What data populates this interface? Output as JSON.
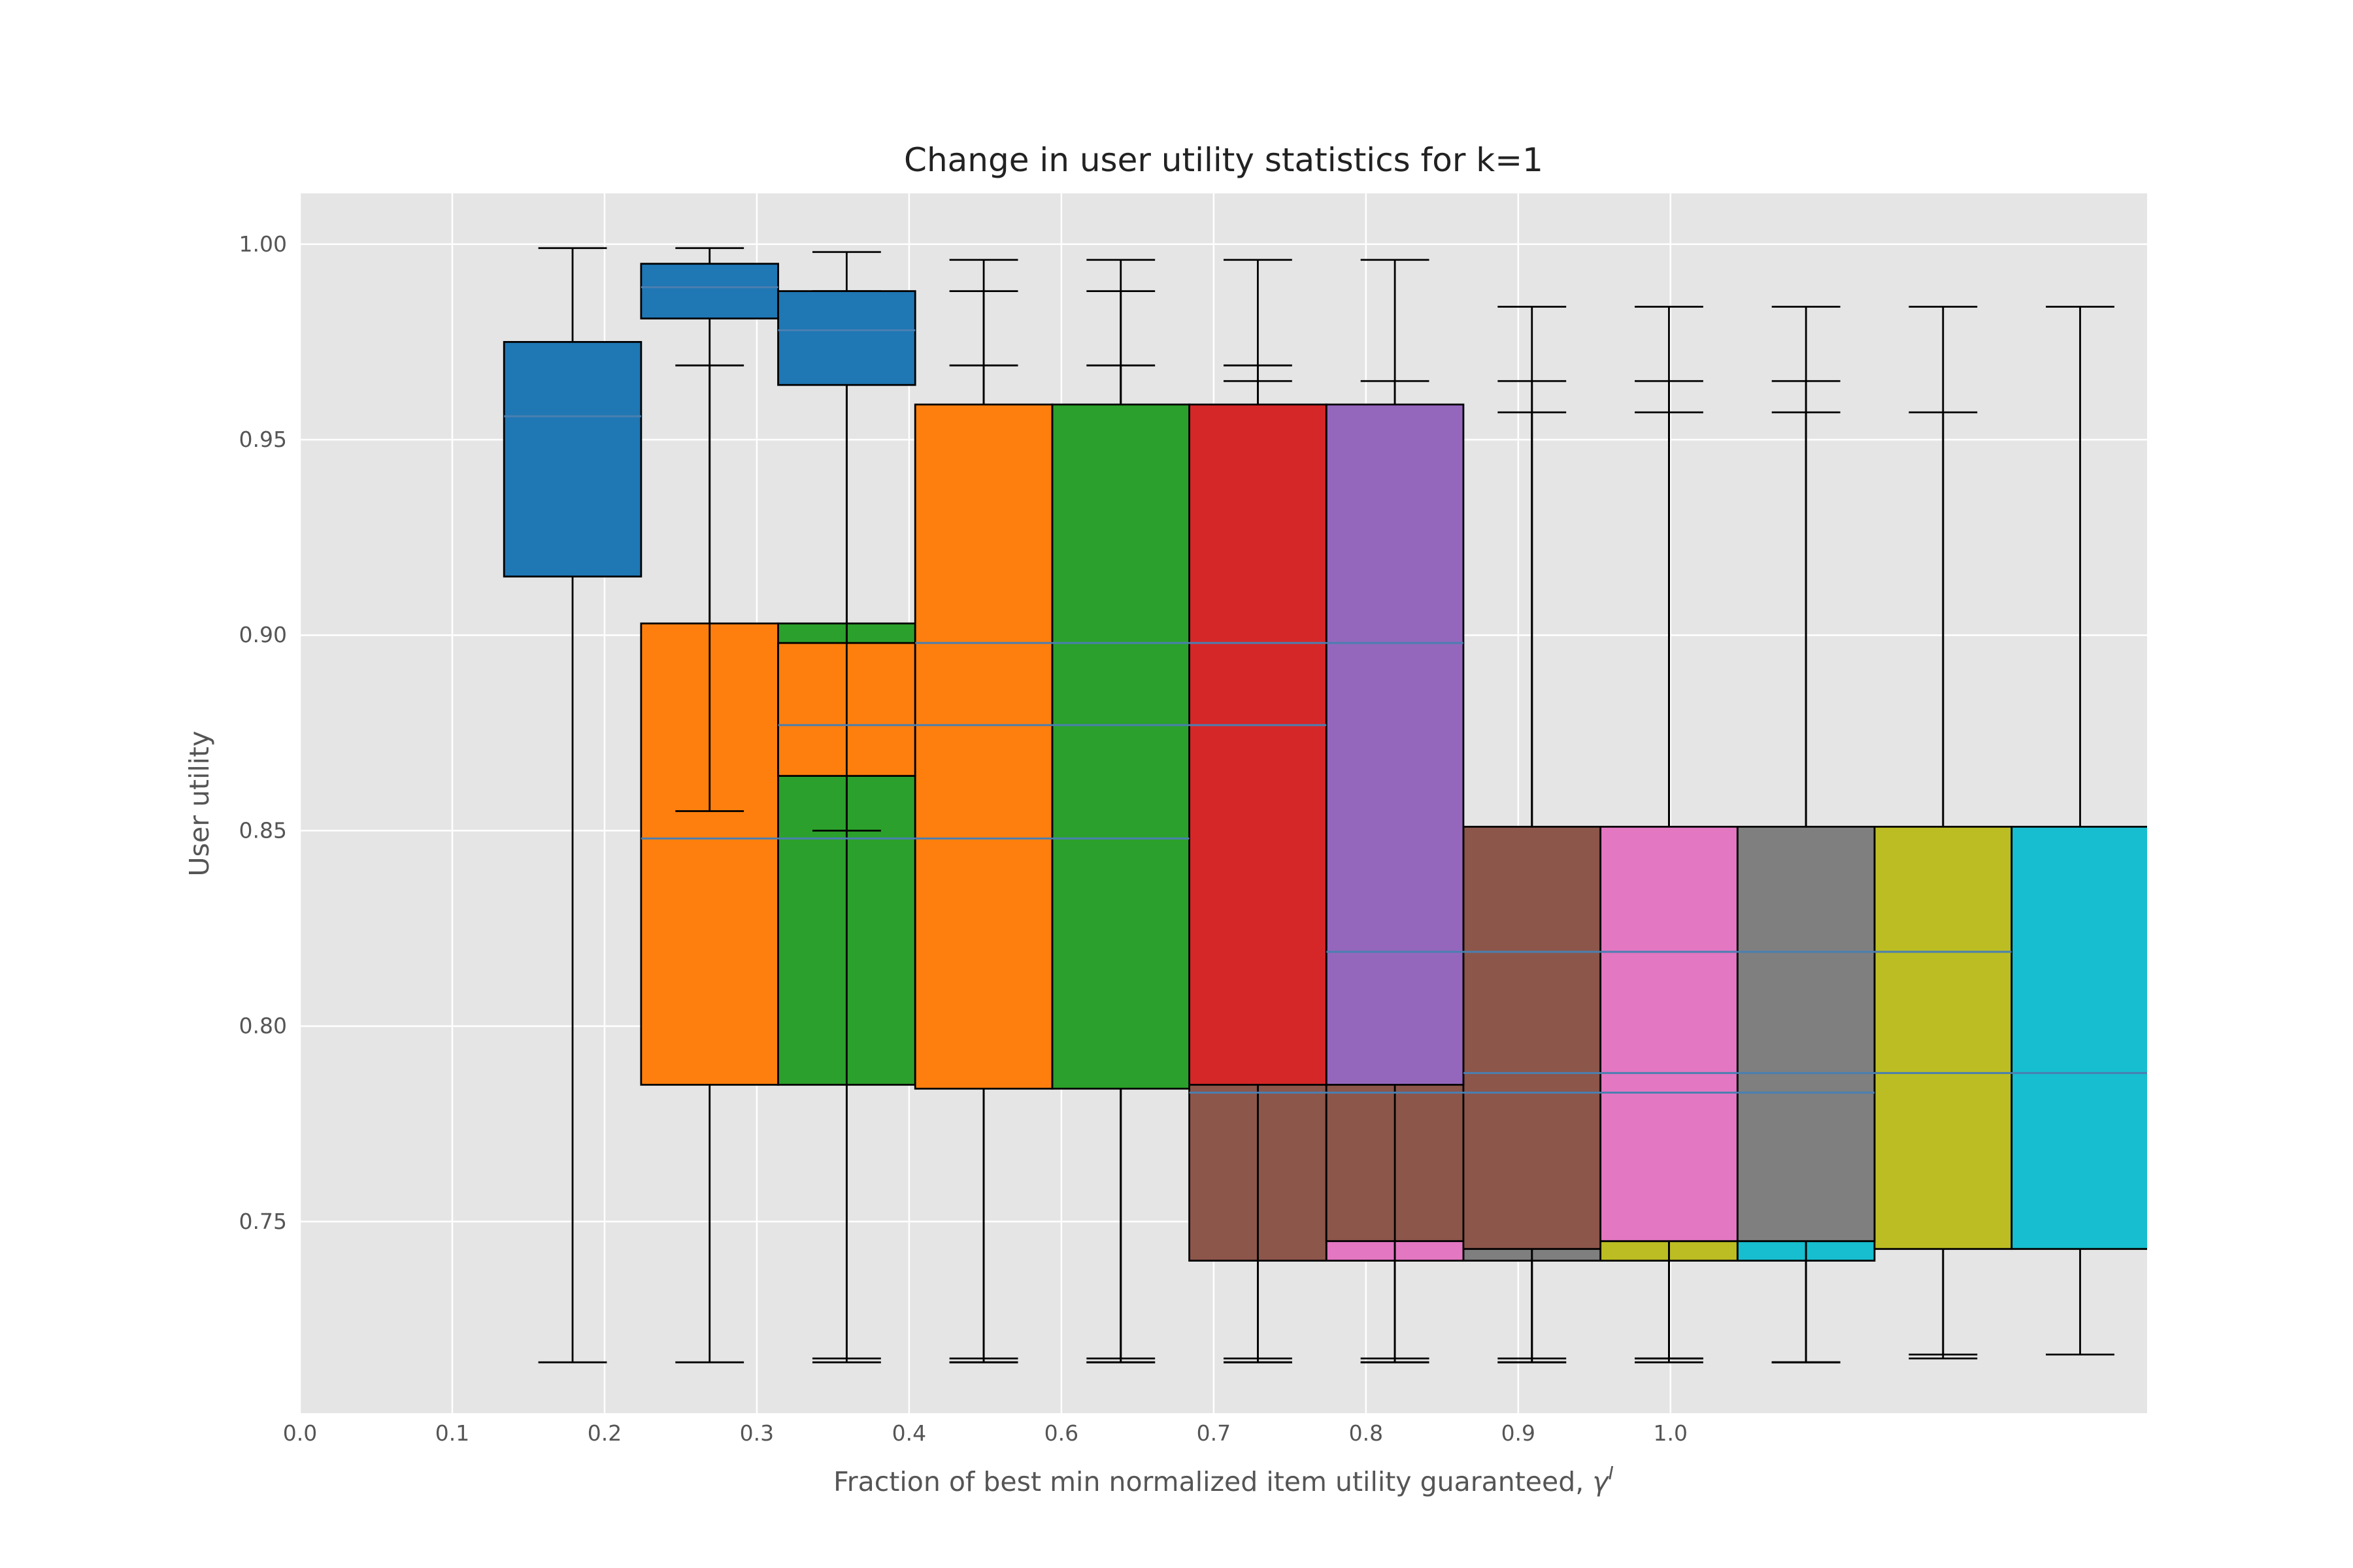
{
  "chart_data": {
    "type": "box",
    "title": "Change in user utility statistics for k=1",
    "x_label": {
      "text": "Fraction of best min normalized item utility guaranteed, ",
      "symbol": "γ",
      "superscript": "I"
    },
    "y_label": "User utility",
    "xlim": [
      0,
      12.13
    ],
    "ylim": [
      0.701,
      1.013
    ],
    "xticks": [
      {
        "value": 0,
        "label": "0.0"
      },
      {
        "value": 1,
        "label": "0.1"
      },
      {
        "value": 2,
        "label": "0.2"
      },
      {
        "value": 3,
        "label": "0.3"
      },
      {
        "value": 4,
        "label": "0.4"
      },
      {
        "value": 5,
        "label": "0.6"
      },
      {
        "value": 6,
        "label": "0.7"
      },
      {
        "value": 7,
        "label": "0.8"
      },
      {
        "value": 8,
        "label": "0.9"
      },
      {
        "value": 9,
        "label": "1.0"
      }
    ],
    "yticks": [
      0.75,
      {
        "value": 0.8,
        "label": "0.80"
      },
      0.85,
      {
        "value": 0.9,
        "label": "0.90"
      },
      0.95,
      {
        "value": 1.0,
        "label": "1.00"
      }
    ],
    "grid": true,
    "median_color": "#4a7fb0",
    "series": [
      {
        "color": "#1f77b4",
        "boxes": [
          {
            "position": 1.79,
            "whislo": 0.714,
            "q1": 0.915,
            "med": 0.956,
            "q3": 0.975,
            "whishi": 0.999
          },
          {
            "position": 2.69,
            "whislo": 0.855,
            "q1": 0.981,
            "med": 0.989,
            "q3": 0.995,
            "whishi": 0.999
          },
          {
            "position": 3.59,
            "whislo": 0.85,
            "q1": 0.964,
            "med": 0.978,
            "q3": 0.988,
            "whishi": 0.998
          }
        ]
      },
      {
        "color": "#ff7f0e",
        "boxes": [
          {
            "position": 2.69,
            "whislo": 0.714,
            "q1": 0.785,
            "med": 0.848,
            "q3": 0.903,
            "whishi": 0.969
          },
          {
            "position": 3.59,
            "whislo": 0.715,
            "q1": 0.864,
            "med": 0.877,
            "q3": 0.898,
            "whishi": 0.988
          },
          {
            "position": 4.49,
            "whislo": 0.714,
            "q1": 0.784,
            "med": 0.898,
            "q3": 0.959,
            "whishi": 0.996
          }
        ]
      },
      {
        "color": "#2ca02c",
        "boxes": [
          {
            "position": 3.59,
            "whislo": 0.714,
            "q1": 0.785,
            "med": 0.848,
            "q3": 0.903,
            "whishi": 0.969
          },
          {
            "position": 4.49,
            "whislo": 0.715,
            "q1": 0.864,
            "med": 0.877,
            "q3": 0.898,
            "whishi": 0.988
          },
          {
            "position": 5.39,
            "whislo": 0.714,
            "q1": 0.784,
            "med": 0.898,
            "q3": 0.959,
            "whishi": 0.996
          }
        ]
      },
      {
        "color": "#d62728",
        "boxes": [
          {
            "position": 4.49,
            "whislo": 0.714,
            "q1": 0.785,
            "med": 0.848,
            "q3": 0.903,
            "whishi": 0.969
          },
          {
            "position": 5.39,
            "whislo": 0.715,
            "q1": 0.864,
            "med": 0.877,
            "q3": 0.898,
            "whishi": 0.988
          },
          {
            "position": 6.29,
            "whislo": 0.714,
            "q1": 0.785,
            "med": 0.898,
            "q3": 0.959,
            "whishi": 0.996
          }
        ]
      },
      {
        "color": "#9467bd",
        "boxes": [
          {
            "position": 5.39,
            "whislo": 0.714,
            "q1": 0.785,
            "med": 0.848,
            "q3": 0.903,
            "whishi": 0.969
          },
          {
            "position": 6.29,
            "whislo": 0.715,
            "q1": 0.864,
            "med": 0.877,
            "q3": 0.898,
            "whishi": 0.969
          },
          {
            "position": 7.19,
            "whislo": 0.714,
            "q1": 0.785,
            "med": 0.898,
            "q3": 0.959,
            "whishi": 0.996
          }
        ]
      },
      {
        "color": "#8c564b",
        "boxes": [
          {
            "position": 6.29,
            "whislo": 0.714,
            "q1": 0.74,
            "med": 0.783,
            "q3": 0.851,
            "whishi": 0.965
          },
          {
            "position": 7.19,
            "whislo": 0.714,
            "q1": 0.745,
            "med": 0.819,
            "q3": 0.851,
            "whishi": 0.965
          },
          {
            "position": 8.09,
            "whislo": 0.715,
            "q1": 0.743,
            "med": 0.788,
            "q3": 0.851,
            "whishi": 0.984
          }
        ]
      },
      {
        "color": "#e377c2",
        "boxes": [
          {
            "position": 7.19,
            "whislo": 0.715,
            "q1": 0.74,
            "med": 0.783,
            "q3": 0.851,
            "whishi": 0.957
          },
          {
            "position": 8.09,
            "whislo": 0.714,
            "q1": 0.745,
            "med": 0.819,
            "q3": 0.851,
            "whishi": 0.965
          },
          {
            "position": 8.99,
            "whislo": 0.714,
            "q1": 0.745,
            "med": 0.788,
            "q3": 0.851,
            "whishi": 0.984
          }
        ]
      },
      {
        "color": "#7f7f7f",
        "boxes": [
          {
            "position": 8.09,
            "whislo": 0.714,
            "q1": 0.74,
            "med": 0.783,
            "q3": 0.851,
            "whishi": 0.957
          },
          {
            "position": 8.99,
            "whislo": 0.715,
            "q1": 0.745,
            "med": 0.819,
            "q3": 0.851,
            "whishi": 0.965
          },
          {
            "position": 9.89,
            "whislo": 0.714,
            "q1": 0.745,
            "med": 0.788,
            "q3": 0.851,
            "whishi": 0.984
          }
        ]
      },
      {
        "color": "#bcbd22",
        "boxes": [
          {
            "position": 8.99,
            "whislo": 0.715,
            "q1": 0.74,
            "med": 0.783,
            "q3": 0.851,
            "whishi": 0.957
          },
          {
            "position": 9.89,
            "whislo": 0.714,
            "q1": 0.745,
            "med": 0.819,
            "q3": 0.851,
            "whishi": 0.965
          },
          {
            "position": 10.79,
            "whislo": 0.716,
            "q1": 0.743,
            "med": 0.788,
            "q3": 0.851,
            "whishi": 0.984
          }
        ]
      },
      {
        "color": "#17becf",
        "boxes": [
          {
            "position": 9.89,
            "whislo": 0.714,
            "q1": 0.74,
            "med": 0.783,
            "q3": 0.851,
            "whishi": 0.957
          },
          {
            "position": 10.79,
            "whislo": 0.715,
            "q1": 0.745,
            "med": 0.819,
            "q3": 0.851,
            "whishi": 0.957
          },
          {
            "position": 11.69,
            "whislo": 0.716,
            "q1": 0.743,
            "med": 0.788,
            "q3": 0.851,
            "whishi": 0.984
          }
        ]
      }
    ]
  }
}
